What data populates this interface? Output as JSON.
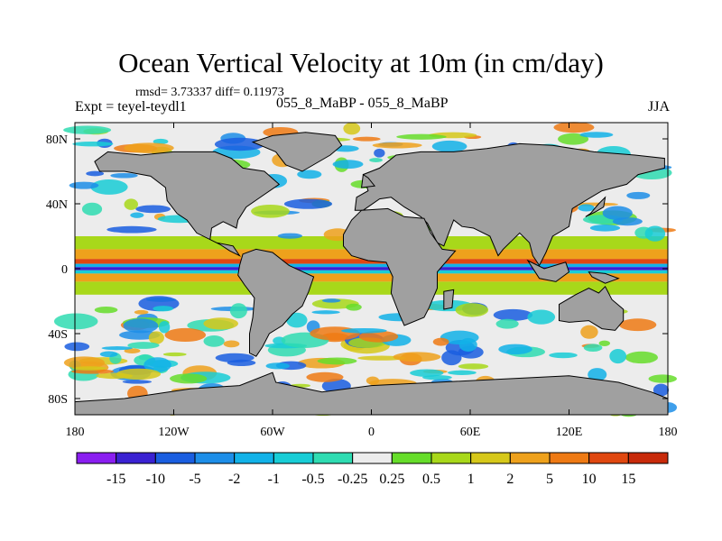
{
  "chart_data": {
    "type": "heatmap",
    "title": "Ocean Vertical Velocity at 10m (in cm/day)",
    "stats": "rmsd= 3.73337 diff= 0.11973",
    "left_label": "Expt = teyel-teydl1",
    "center_label": "055_8_MaBP - 055_8_MaBP",
    "right_label": "JJA",
    "xlim": [
      -180,
      180
    ],
    "ylim": [
      -90,
      90
    ],
    "x_ticks": [
      {
        "value": -180,
        "label": "180"
      },
      {
        "value": -120,
        "label": "120W"
      },
      {
        "value": -60,
        "label": "60W"
      },
      {
        "value": 0,
        "label": "0"
      },
      {
        "value": 60,
        "label": "60E"
      },
      {
        "value": 120,
        "label": "120E"
      },
      {
        "value": 180,
        "label": "180"
      }
    ],
    "y_ticks": [
      {
        "value": 80,
        "label": "80N"
      },
      {
        "value": 40,
        "label": "40N"
      },
      {
        "value": 0,
        "label": "0"
      },
      {
        "value": -40,
        "label": "40S"
      },
      {
        "value": -80,
        "label": "80S"
      }
    ],
    "colorbar": {
      "levels": [
        "-15",
        "-10",
        "-5",
        "-2",
        "-1",
        "-0.5",
        "-0.25",
        "0.25",
        "0.5",
        "1",
        "2",
        "5",
        "10",
        "15"
      ],
      "colors": [
        "#8a1ef0",
        "#3a22d2",
        "#1a5ee0",
        "#1d8ee8",
        "#12b2e8",
        "#18cdd6",
        "#2fdcb2",
        "#ececec",
        "#66dd2a",
        "#a8d81a",
        "#d6c81a",
        "#eea11c",
        "#ee7a14",
        "#e04810",
        "#c82a0a"
      ]
    },
    "land_color": "#a0a0a0"
  }
}
